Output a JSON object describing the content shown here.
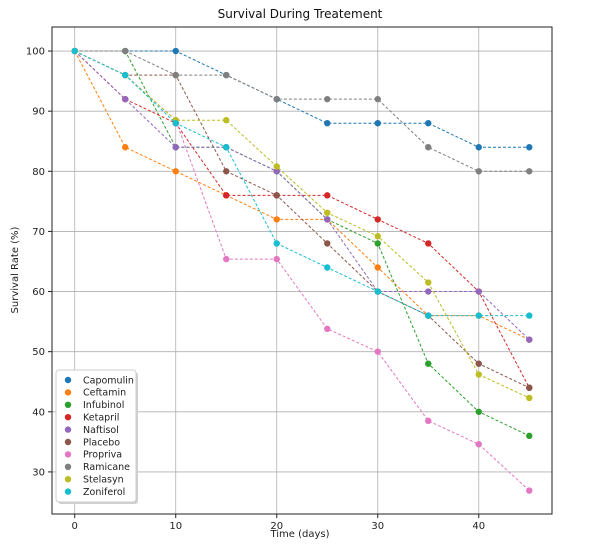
{
  "chart_data": {
    "type": "line",
    "title": "Survival During Treatement",
    "xlabel": "Time (days)",
    "ylabel": "Survival Rate (%)",
    "xlim": [
      -2.25,
      47.25
    ],
    "ylim": [
      23,
      104
    ],
    "xticks": [
      0,
      10,
      20,
      30,
      40
    ],
    "yticks": [
      30,
      40,
      50,
      60,
      70,
      80,
      90,
      100
    ],
    "grid": true,
    "legend_position": "lower-left",
    "x": [
      0,
      5,
      10,
      15,
      20,
      25,
      30,
      35,
      40,
      45
    ],
    "series": [
      {
        "name": "Capomulin",
        "color": "#1f77b4",
        "values": [
          100,
          100,
          100,
          96,
          92,
          88,
          88,
          88,
          84,
          84
        ]
      },
      {
        "name": "Ceftamin",
        "color": "#ff7f0e",
        "values": [
          100,
          84,
          80,
          76,
          72,
          72,
          64,
          56,
          56,
          52
        ]
      },
      {
        "name": "Infubinol",
        "color": "#2ca02c",
        "values": [
          100,
          100,
          84,
          84,
          80,
          72,
          68,
          48,
          40,
          36
        ]
      },
      {
        "name": "Ketapril",
        "color": "#d62728",
        "values": [
          100,
          92,
          88,
          76,
          76,
          76,
          72,
          68,
          60,
          44
        ]
      },
      {
        "name": "Naftisol",
        "color": "#9467bd",
        "values": [
          100,
          92,
          84,
          84,
          80,
          72,
          60,
          60,
          60,
          52
        ]
      },
      {
        "name": "Placebo",
        "color": "#8c564b",
        "values": [
          100,
          96,
          96,
          80,
          76,
          68,
          60,
          56,
          48,
          44
        ]
      },
      {
        "name": "Propriva",
        "color": "#e377c2",
        "values": [
          100,
          96,
          88.5,
          65.4,
          65.4,
          53.8,
          50,
          38.5,
          34.6,
          26.9
        ]
      },
      {
        "name": "Ramicane",
        "color": "#7f7f7f",
        "values": [
          100,
          100,
          96,
          96,
          92,
          92,
          92,
          84,
          80,
          80
        ]
      },
      {
        "name": "Stelasyn",
        "color": "#bcbd22",
        "values": [
          100,
          96,
          88.5,
          88.5,
          80.8,
          73.1,
          69.2,
          61.5,
          46.2,
          42.3
        ]
      },
      {
        "name": "Zoniferol",
        "color": "#17becf",
        "values": [
          100,
          96,
          88,
          84,
          68,
          64,
          60,
          56,
          56,
          56
        ]
      }
    ]
  }
}
